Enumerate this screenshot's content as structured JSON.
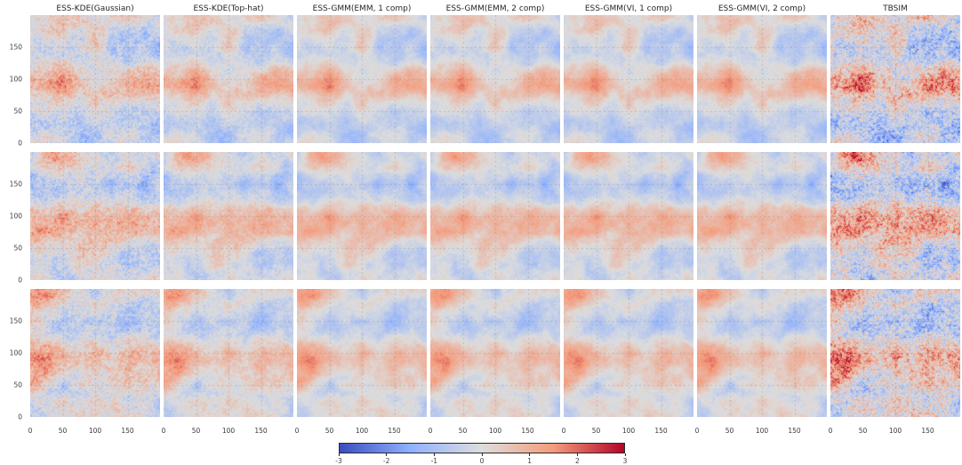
{
  "chart_data": {
    "type": "heatmap",
    "layout": "3 rows x 7 columns of 2D spatial random-field realizations, shared horizontal colorbar at bottom",
    "columns": [
      "ESS-KDE(Gaussian)",
      "ESS-KDE(Top-hat)",
      "ESS-GMM(EMM, 1 comp)",
      "ESS-GMM(EMM, 2 comp)",
      "ESS-GMM(VI, 1 comp)",
      "ESS-GMM(VI, 2 comp)",
      "TBSIM"
    ],
    "rows": 3,
    "x_range": [
      0,
      199
    ],
    "y_range": [
      0,
      199
    ],
    "x_ticks": [
      0,
      50,
      100,
      150
    ],
    "y_ticks": [
      0,
      50,
      100,
      150
    ],
    "grid": true,
    "colormap": "coolwarm",
    "colormap_stops": [
      "#3b4cc0",
      "#90b2fe",
      "#dddddd",
      "#f59c7d",
      "#b40426"
    ],
    "colorbar": {
      "min": -3,
      "max": 3,
      "ticks": [
        -3,
        -2,
        -1,
        0,
        1,
        2,
        3
      ],
      "orientation": "horizontal"
    },
    "texture_hints": {
      "noise_by_column": [
        0.55,
        0.3,
        0.17,
        0.17,
        0.17,
        0.17,
        0.72
      ],
      "contrast_by_column": [
        1.0,
        1.0,
        1.0,
        1.0,
        1.0,
        1.0,
        1.3
      ],
      "row_seeds": [
        101,
        202,
        303
      ]
    }
  }
}
